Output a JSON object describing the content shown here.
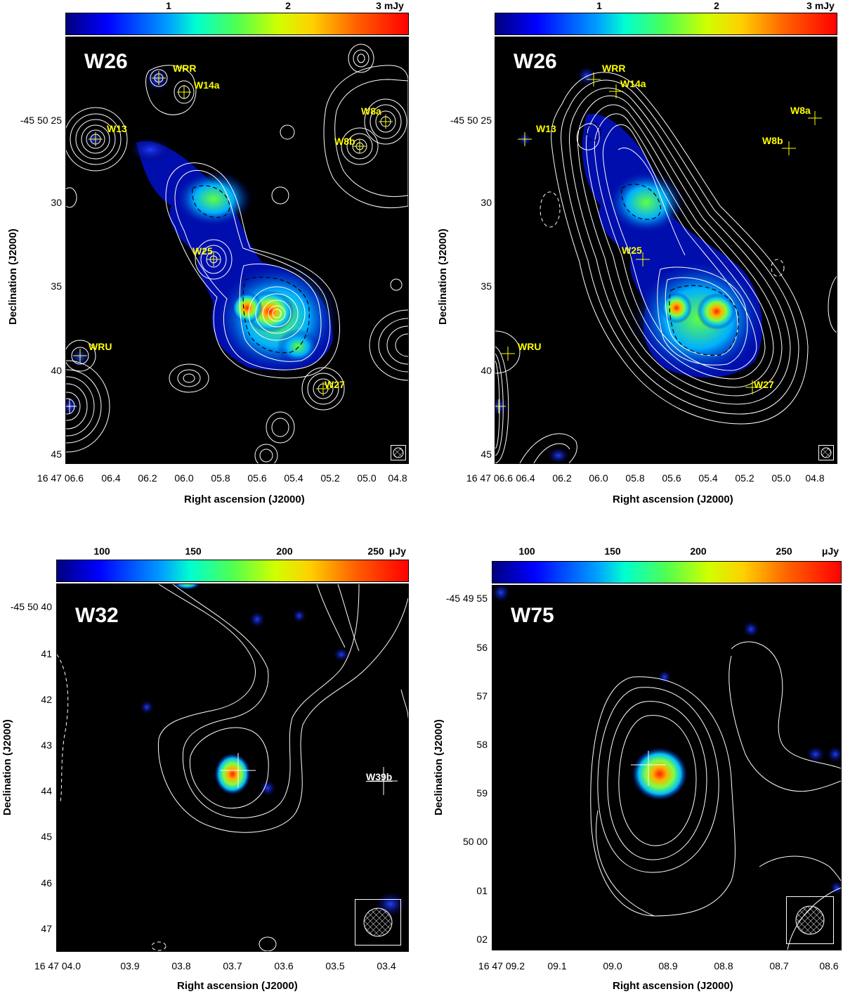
{
  "colors": {
    "background": "#000000",
    "contour": "#ffffff",
    "source_label": "#ffff00",
    "dashed_contour": "#ffffff"
  },
  "panels": [
    {
      "title": "W26",
      "colorbar": {
        "ticks": [
          "1",
          "2"
        ],
        "end_label": "3 mJy",
        "values": [
          1,
          2,
          3
        ],
        "max": 3
      },
      "xticks": [
        "16 47 06.6",
        "06.4",
        "06.2",
        "06.0",
        "05.8",
        "05.6",
        "05.4",
        "05.2",
        "05.0",
        "04.8"
      ],
      "yticks": [
        "-45 50 25",
        "30",
        "35",
        "40",
        "45"
      ],
      "xlabel": "Right ascension (J2000)",
      "ylabel": "Declination (J2000)",
      "sources": [
        "WRR",
        "W14a",
        "W13",
        "W8a",
        "W8b",
        "W25",
        "WRU",
        "W27"
      ]
    },
    {
      "title": "W26",
      "colorbar": {
        "ticks": [
          "1",
          "2"
        ],
        "end_label": "3 mJy",
        "values": [
          1,
          2,
          3
        ],
        "max": 3
      },
      "xticks": [
        "16 47 06.6",
        "06.4",
        "06.2",
        "06.0",
        "05.8",
        "05.6",
        "05.4",
        "05.2",
        "05.0",
        "04.8"
      ],
      "yticks": [
        "-45 50 25",
        "30",
        "35",
        "40",
        "45"
      ],
      "xlabel": "Right ascension (J2000)",
      "ylabel": "Declination (J2000)",
      "sources": [
        "WRR",
        "W14a",
        "W13",
        "W8a",
        "W8b",
        "W25",
        "WRU",
        "W27"
      ]
    },
    {
      "title": "W32",
      "colorbar": {
        "ticks": [
          "100",
          "150",
          "200",
          "250"
        ],
        "end_label": "μJy"
      },
      "xticks": [
        "16 47 04.0",
        "03.9",
        "03.8",
        "03.7",
        "03.6",
        "03.5",
        "03.4"
      ],
      "yticks": [
        "-45 50 40",
        "41",
        "42",
        "43",
        "44",
        "45",
        "46",
        "47"
      ],
      "xlabel": "Right ascension (J2000)",
      "ylabel": "Declination (J2000)",
      "sources": [
        "W39b"
      ]
    },
    {
      "title": "W75",
      "colorbar": {
        "ticks": [
          "100",
          "150",
          "200",
          "250"
        ],
        "end_label": "μJy"
      },
      "xticks": [
        "16 47 09.2",
        "09.1",
        "09.0",
        "08.9",
        "08.8",
        "08.7",
        "08.6"
      ],
      "yticks": [
        "-45 49 55",
        "56",
        "57",
        "58",
        "59",
        "50 00",
        "01",
        "02"
      ],
      "xlabel": "Right ascension (J2000)",
      "ylabel": "Declination (J2000)",
      "sources": []
    }
  ]
}
